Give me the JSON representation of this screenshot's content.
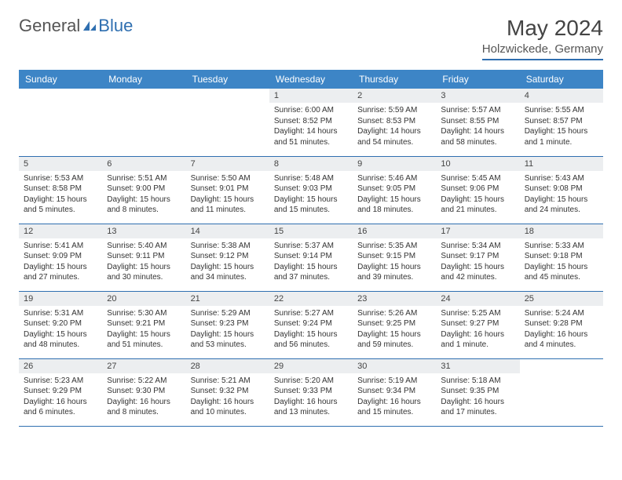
{
  "logo": {
    "text1": "General",
    "text2": "Blue"
  },
  "title": "May 2024",
  "location": "Holzwickede, Germany",
  "header_bg": "#3d85c6",
  "accent": "#2f6fb0",
  "daynum_bg": "#eceef0",
  "weekdays": [
    "Sunday",
    "Monday",
    "Tuesday",
    "Wednesday",
    "Thursday",
    "Friday",
    "Saturday"
  ],
  "weeks": [
    [
      {
        "n": "",
        "sr": "",
        "ss": "",
        "dl": ""
      },
      {
        "n": "",
        "sr": "",
        "ss": "",
        "dl": ""
      },
      {
        "n": "",
        "sr": "",
        "ss": "",
        "dl": ""
      },
      {
        "n": "1",
        "sr": "Sunrise: 6:00 AM",
        "ss": "Sunset: 8:52 PM",
        "dl": "Daylight: 14 hours and 51 minutes."
      },
      {
        "n": "2",
        "sr": "Sunrise: 5:59 AM",
        "ss": "Sunset: 8:53 PM",
        "dl": "Daylight: 14 hours and 54 minutes."
      },
      {
        "n": "3",
        "sr": "Sunrise: 5:57 AM",
        "ss": "Sunset: 8:55 PM",
        "dl": "Daylight: 14 hours and 58 minutes."
      },
      {
        "n": "4",
        "sr": "Sunrise: 5:55 AM",
        "ss": "Sunset: 8:57 PM",
        "dl": "Daylight: 15 hours and 1 minute."
      }
    ],
    [
      {
        "n": "5",
        "sr": "Sunrise: 5:53 AM",
        "ss": "Sunset: 8:58 PM",
        "dl": "Daylight: 15 hours and 5 minutes."
      },
      {
        "n": "6",
        "sr": "Sunrise: 5:51 AM",
        "ss": "Sunset: 9:00 PM",
        "dl": "Daylight: 15 hours and 8 minutes."
      },
      {
        "n": "7",
        "sr": "Sunrise: 5:50 AM",
        "ss": "Sunset: 9:01 PM",
        "dl": "Daylight: 15 hours and 11 minutes."
      },
      {
        "n": "8",
        "sr": "Sunrise: 5:48 AM",
        "ss": "Sunset: 9:03 PM",
        "dl": "Daylight: 15 hours and 15 minutes."
      },
      {
        "n": "9",
        "sr": "Sunrise: 5:46 AM",
        "ss": "Sunset: 9:05 PM",
        "dl": "Daylight: 15 hours and 18 minutes."
      },
      {
        "n": "10",
        "sr": "Sunrise: 5:45 AM",
        "ss": "Sunset: 9:06 PM",
        "dl": "Daylight: 15 hours and 21 minutes."
      },
      {
        "n": "11",
        "sr": "Sunrise: 5:43 AM",
        "ss": "Sunset: 9:08 PM",
        "dl": "Daylight: 15 hours and 24 minutes."
      }
    ],
    [
      {
        "n": "12",
        "sr": "Sunrise: 5:41 AM",
        "ss": "Sunset: 9:09 PM",
        "dl": "Daylight: 15 hours and 27 minutes."
      },
      {
        "n": "13",
        "sr": "Sunrise: 5:40 AM",
        "ss": "Sunset: 9:11 PM",
        "dl": "Daylight: 15 hours and 30 minutes."
      },
      {
        "n": "14",
        "sr": "Sunrise: 5:38 AM",
        "ss": "Sunset: 9:12 PM",
        "dl": "Daylight: 15 hours and 34 minutes."
      },
      {
        "n": "15",
        "sr": "Sunrise: 5:37 AM",
        "ss": "Sunset: 9:14 PM",
        "dl": "Daylight: 15 hours and 37 minutes."
      },
      {
        "n": "16",
        "sr": "Sunrise: 5:35 AM",
        "ss": "Sunset: 9:15 PM",
        "dl": "Daylight: 15 hours and 39 minutes."
      },
      {
        "n": "17",
        "sr": "Sunrise: 5:34 AM",
        "ss": "Sunset: 9:17 PM",
        "dl": "Daylight: 15 hours and 42 minutes."
      },
      {
        "n": "18",
        "sr": "Sunrise: 5:33 AM",
        "ss": "Sunset: 9:18 PM",
        "dl": "Daylight: 15 hours and 45 minutes."
      }
    ],
    [
      {
        "n": "19",
        "sr": "Sunrise: 5:31 AM",
        "ss": "Sunset: 9:20 PM",
        "dl": "Daylight: 15 hours and 48 minutes."
      },
      {
        "n": "20",
        "sr": "Sunrise: 5:30 AM",
        "ss": "Sunset: 9:21 PM",
        "dl": "Daylight: 15 hours and 51 minutes."
      },
      {
        "n": "21",
        "sr": "Sunrise: 5:29 AM",
        "ss": "Sunset: 9:23 PM",
        "dl": "Daylight: 15 hours and 53 minutes."
      },
      {
        "n": "22",
        "sr": "Sunrise: 5:27 AM",
        "ss": "Sunset: 9:24 PM",
        "dl": "Daylight: 15 hours and 56 minutes."
      },
      {
        "n": "23",
        "sr": "Sunrise: 5:26 AM",
        "ss": "Sunset: 9:25 PM",
        "dl": "Daylight: 15 hours and 59 minutes."
      },
      {
        "n": "24",
        "sr": "Sunrise: 5:25 AM",
        "ss": "Sunset: 9:27 PM",
        "dl": "Daylight: 16 hours and 1 minute."
      },
      {
        "n": "25",
        "sr": "Sunrise: 5:24 AM",
        "ss": "Sunset: 9:28 PM",
        "dl": "Daylight: 16 hours and 4 minutes."
      }
    ],
    [
      {
        "n": "26",
        "sr": "Sunrise: 5:23 AM",
        "ss": "Sunset: 9:29 PM",
        "dl": "Daylight: 16 hours and 6 minutes."
      },
      {
        "n": "27",
        "sr": "Sunrise: 5:22 AM",
        "ss": "Sunset: 9:30 PM",
        "dl": "Daylight: 16 hours and 8 minutes."
      },
      {
        "n": "28",
        "sr": "Sunrise: 5:21 AM",
        "ss": "Sunset: 9:32 PM",
        "dl": "Daylight: 16 hours and 10 minutes."
      },
      {
        "n": "29",
        "sr": "Sunrise: 5:20 AM",
        "ss": "Sunset: 9:33 PM",
        "dl": "Daylight: 16 hours and 13 minutes."
      },
      {
        "n": "30",
        "sr": "Sunrise: 5:19 AM",
        "ss": "Sunset: 9:34 PM",
        "dl": "Daylight: 16 hours and 15 minutes."
      },
      {
        "n": "31",
        "sr": "Sunrise: 5:18 AM",
        "ss": "Sunset: 9:35 PM",
        "dl": "Daylight: 16 hours and 17 minutes."
      },
      {
        "n": "",
        "sr": "",
        "ss": "",
        "dl": ""
      }
    ]
  ]
}
